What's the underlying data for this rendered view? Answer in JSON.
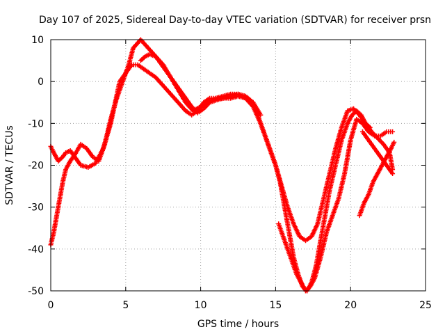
{
  "chart_data": {
    "type": "scatter",
    "title": "Day 107 of 2025, Sidereal Day-to-day VTEC variation (SDTVAR) for receiver prsn",
    "xlabel": "GPS time / hours",
    "ylabel": "SDTVAR / TECUs",
    "xlim": [
      0,
      25
    ],
    "ylim": [
      -50,
      10
    ],
    "xticks": [
      "0",
      "5",
      "10",
      "15",
      "20",
      "25"
    ],
    "yticks": [
      "10",
      "0",
      "-10",
      "-20",
      "-30",
      "-40",
      "-50"
    ],
    "grid": true,
    "marker": "+",
    "color": "#ff0000",
    "series": [
      {
        "x": [
          0.0,
          0.2,
          0.5,
          0.8,
          1.0,
          1.3,
          1.6,
          2.0,
          2.5,
          3.0,
          3.5,
          4.0,
          4.3,
          4.6,
          5.0,
          5.4,
          5.8,
          6.2,
          6.6,
          7.0,
          7.5,
          8.0,
          8.5,
          9.0,
          9.4,
          9.8,
          10.2,
          10.6,
          11.0,
          11.5,
          12.0,
          12.5,
          13.0,
          13.5,
          14.0,
          14.5,
          15.0,
          15.3,
          15.6,
          15.9,
          16.2,
          16.5,
          16.8,
          17.1,
          17.4,
          17.7,
          18.0,
          18.3,
          18.6,
          19.0,
          19.4,
          19.8,
          20.1,
          20.4,
          20.7,
          21.0,
          21.3
        ],
        "y": [
          -15.5,
          -17,
          -19,
          -18,
          -17,
          -16.5,
          -18,
          -20,
          -20.5,
          -19.5,
          -16,
          -10,
          -5,
          0,
          2,
          4,
          4,
          3,
          2,
          1,
          -1,
          -3,
          -5,
          -7,
          -8,
          -7,
          -5,
          -4,
          -4,
          -4,
          -4,
          -3.5,
          -4,
          -5,
          -10,
          -15,
          -20,
          -24,
          -30,
          -36,
          -42,
          -46,
          -49,
          -50,
          -48,
          -44,
          -38,
          -32,
          -26,
          -20,
          -14,
          -10,
          -8,
          -7,
          -8,
          -10,
          -11
        ]
      },
      {
        "x": [
          0.0,
          0.2,
          0.4,
          0.6,
          0.8,
          1.0,
          1.3,
          1.6,
          2.0,
          2.4,
          2.8,
          3.2,
          3.6,
          4.0,
          4.4,
          4.8,
          5.2,
          5.5,
          6.0,
          6.5,
          7.0,
          7.5,
          8.0,
          8.5,
          9.0,
          9.5,
          10.0,
          10.5,
          11.0,
          11.5,
          12.0,
          12.5,
          13.0,
          13.5,
          14.0,
          14.5,
          15.0,
          15.4,
          15.8,
          16.2,
          16.6,
          17.0,
          17.4,
          17.8,
          18.2,
          18.6,
          19.0,
          19.4,
          19.8,
          20.2,
          20.6,
          21.0,
          21.4,
          21.8,
          22.2,
          22.6,
          22.8
        ],
        "y": [
          -39,
          -36,
          -32,
          -28,
          -24,
          -21,
          -19,
          -17.5,
          -15,
          -16,
          -18,
          -19,
          -15,
          -9,
          -4,
          0,
          4,
          8,
          10,
          8,
          6,
          4,
          1,
          -2,
          -5,
          -7,
          -6,
          -5,
          -4,
          -3.5,
          -3,
          -3,
          -4,
          -6,
          -10,
          -15,
          -20,
          -25,
          -30,
          -34,
          -37,
          -38,
          -37,
          -34,
          -28,
          -22,
          -16,
          -11,
          -7,
          -6.5,
          -8,
          -10,
          -12,
          -13.5,
          -15,
          -17,
          -21
        ]
      },
      {
        "x": [
          15.2,
          15.5,
          15.8,
          16.1,
          16.4,
          16.7,
          17.0,
          17.3,
          17.6,
          18.0,
          18.4,
          18.8,
          19.2,
          19.6,
          20.0,
          20.4,
          20.8,
          21.2,
          21.6,
          22.0,
          22.4,
          22.8
        ],
        "y": [
          -34,
          -37,
          -40,
          -43,
          -46,
          -48,
          -50,
          -49,
          -47,
          -42,
          -36,
          -32,
          -28,
          -22,
          -14,
          -9,
          -10,
          -12,
          -13,
          -13,
          -12,
          -12
        ]
      },
      {
        "x": [
          6.0,
          6.3,
          6.6,
          7.0,
          7.4,
          7.8,
          8.2,
          8.6,
          9.0,
          9.4,
          9.8,
          10.2,
          10.6,
          11.0,
          11.5,
          12.0,
          12.5,
          13.0,
          13.5,
          14.0
        ],
        "y": [
          5,
          6,
          6.5,
          6,
          4,
          2,
          0,
          -2,
          -4,
          -6,
          -7.5,
          -6.5,
          -5,
          -4.5,
          -4,
          -3.5,
          -3,
          -3.5,
          -5,
          -8
        ]
      },
      {
        "x": [
          20.6,
          20.9,
          21.2,
          21.5,
          21.8,
          22.1,
          22.4,
          22.7,
          22.9
        ],
        "y": [
          -32,
          -29,
          -27,
          -24,
          -22,
          -20,
          -18,
          -16,
          -14.5
        ]
      },
      {
        "x": [
          20.8,
          21.2,
          21.6,
          22.0,
          22.4,
          22.8
        ],
        "y": [
          -12,
          -14,
          -16,
          -18,
          -20,
          -22
        ]
      }
    ]
  }
}
